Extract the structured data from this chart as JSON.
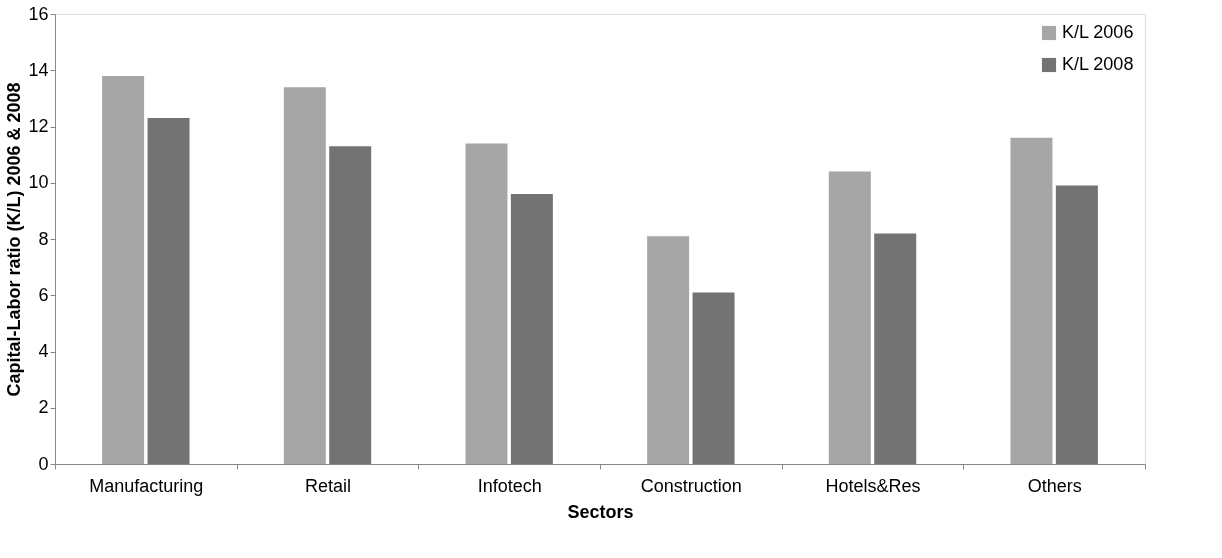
{
  "chart_data": {
    "type": "bar",
    "xlabel": "Sectors",
    "ylabel": "Capital-Labor ratio (K/L) 2006 & 2008",
    "categories": [
      "Manufacturing",
      "Retail",
      "Infotech",
      "Construction",
      "Hotels&Res",
      "Others"
    ],
    "series": [
      {
        "name": "K/L 2006",
        "color": "#a6a6a6",
        "values": [
          13.8,
          13.4,
          11.4,
          8.1,
          10.4,
          11.6
        ]
      },
      {
        "name": "K/L 2008",
        "color": "#737373",
        "values": [
          12.3,
          11.3,
          9.6,
          6.1,
          8.2,
          9.9
        ]
      }
    ],
    "ylim": [
      0,
      16
    ],
    "yticks": [
      0,
      2,
      4,
      6,
      8,
      10,
      12,
      14,
      16
    ],
    "grid": false,
    "legend": "top right"
  }
}
